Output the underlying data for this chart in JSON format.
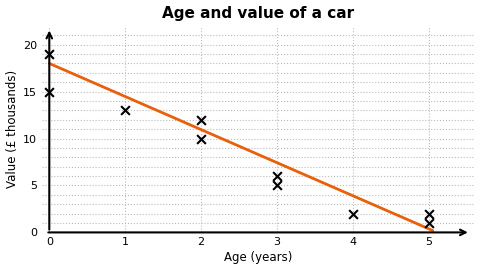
{
  "title": "Age and value of a car",
  "xlabel": "Age (years)",
  "ylabel": "Value (£ thousands)",
  "scatter_x": [
    0,
    0,
    1,
    2,
    2,
    3,
    3,
    4,
    5,
    5
  ],
  "scatter_y": [
    19,
    15,
    13,
    12,
    10,
    6,
    5,
    2,
    2,
    1
  ],
  "line_x": [
    0,
    5.05
  ],
  "line_y": [
    18.0,
    0.2
  ],
  "line_color": "#E8600A",
  "marker_color": "#000000",
  "background_color": "#ffffff",
  "grid_color": "#bbbbbb",
  "xlim": [
    -0.1,
    5.6
  ],
  "ylim": [
    0,
    22
  ],
  "xticks": [
    0,
    1,
    2,
    3,
    4,
    5
  ],
  "yticks": [
    0,
    5,
    10,
    15,
    20
  ],
  "title_fontsize": 11,
  "label_fontsize": 8.5,
  "tick_fontsize": 8
}
